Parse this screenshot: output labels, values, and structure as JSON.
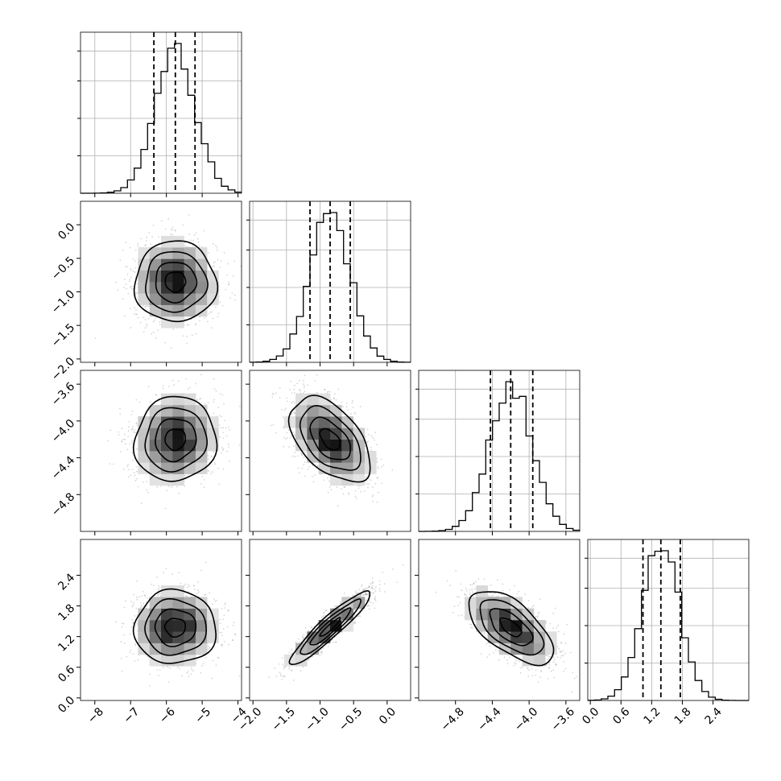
{
  "chart_data": {
    "type": "corner",
    "n_params": 4,
    "params": [
      {
        "index": 0,
        "range": [
          -8.4,
          -3.9
        ],
        "median": -5.75,
        "q16": -6.35,
        "q84": -5.2,
        "sigma": 0.57,
        "mean": -5.75
      },
      {
        "index": 1,
        "range": [
          -2.05,
          0.35
        ],
        "median": -0.85,
        "q16": -1.15,
        "q84": -0.55,
        "sigma": 0.3,
        "mean": -0.85
      },
      {
        "index": 2,
        "range": [
          -5.2,
          -3.45
        ],
        "median": -4.2,
        "q16": -4.42,
        "q84": -3.96,
        "sigma": 0.23,
        "mean": -4.2
      },
      {
        "index": 3,
        "range": [
          -0.05,
          3.1
        ],
        "median": 1.38,
        "q16": 1.03,
        "q84": 1.76,
        "sigma": 0.36,
        "mean": 1.38
      }
    ],
    "xticks": [
      [
        "−8",
        "−7",
        "−6",
        "−5",
        "−4"
      ],
      [
        "−2.0",
        "−1.5",
        "−1.0",
        "−0.5",
        "0.0"
      ],
      [
        "−4.8",
        "−4.4",
        "−4.0",
        "−3.6"
      ],
      [
        "0.0",
        "0.6",
        "1.2",
        "1.8",
        "2.4"
      ]
    ],
    "xtick_values": [
      [
        -8,
        -7,
        -6,
        -5,
        -4
      ],
      [
        -2.0,
        -1.5,
        -1.0,
        -0.5,
        0.0
      ],
      [
        -4.8,
        -4.4,
        -4.0,
        -3.6
      ],
      [
        0.0,
        0.6,
        1.2,
        1.8,
        2.4
      ]
    ],
    "yticks": [
      [],
      [
        "0.0",
        "−0.5",
        "−1.0",
        "−1.5",
        "−2.0"
      ],
      [
        "−3.6",
        "−4.0",
        "−4.4",
        "−4.8"
      ],
      [
        "2.4",
        "1.8",
        "1.2",
        "0.6",
        "0.0"
      ]
    ],
    "ytick_values": [
      [],
      [
        0.0,
        -0.5,
        -1.0,
        -1.5,
        -2.0
      ],
      [
        -3.6,
        -4.0,
        -4.4,
        -4.8
      ],
      [
        2.4,
        1.8,
        1.2,
        0.6,
        0.0
      ]
    ],
    "correlations": [
      {
        "row": 1,
        "col": 0,
        "rho": 0.0
      },
      {
        "row": 2,
        "col": 0,
        "rho": 0.05
      },
      {
        "row": 2,
        "col": 1,
        "rho": -0.5
      },
      {
        "row": 3,
        "col": 0,
        "rho": 0.0
      },
      {
        "row": 3,
        "col": 1,
        "rho": 0.93
      },
      {
        "row": 3,
        "col": 2,
        "rho": -0.62
      }
    ],
    "contour_levels_sigma": [
      0.5,
      1.0,
      1.5,
      2.0
    ],
    "grid": true,
    "title": "",
    "legend": "none"
  }
}
